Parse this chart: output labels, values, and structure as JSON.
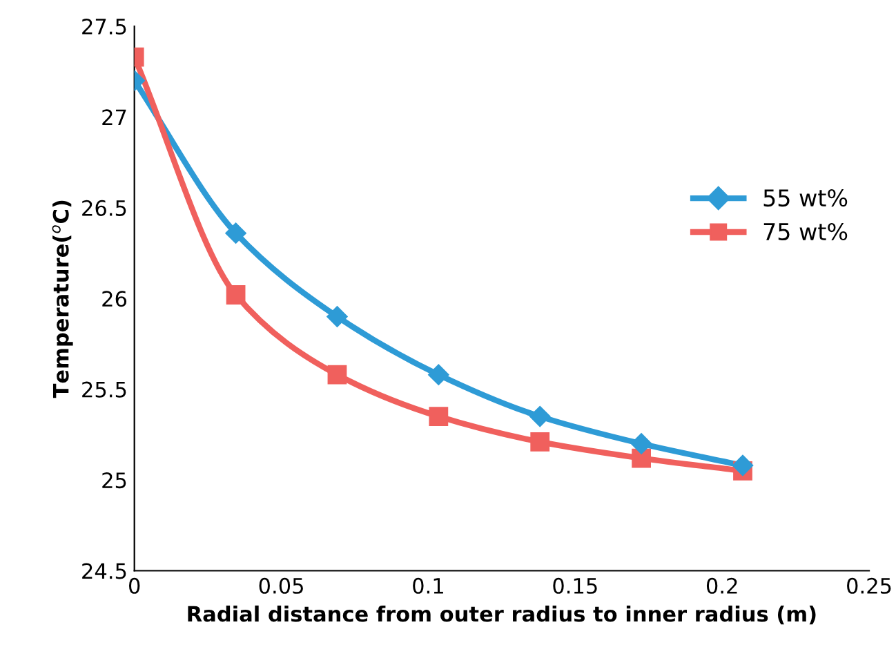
{
  "chart_data": {
    "type": "line",
    "xlabel": "Radial distance from outer radius to inner radius (m)",
    "ylabel": "Temperature($^{o}$C)",
    "xlim": [
      0,
      0.25
    ],
    "xticks": [
      0,
      0.05,
      0.1,
      0.15,
      0.2,
      0.25
    ],
    "ylim": [
      24.5,
      27.5
    ],
    "yticks": [
      24.5,
      25,
      25.5,
      26,
      26.5,
      27,
      27.5
    ],
    "x": [
      0,
      0.0345,
      0.069,
      0.1035,
      0.138,
      0.1725,
      0.207
    ],
    "series": [
      {
        "name": "55 wt%",
        "color": "#2e9bd6",
        "marker": "diamond",
        "values": [
          27.2,
          26.36,
          25.9,
          25.58,
          25.35,
          25.2,
          25.08
        ]
      },
      {
        "name": "75 wt%",
        "color": "#f0605d",
        "marker": "square",
        "values": [
          27.33,
          26.02,
          25.58,
          25.35,
          25.21,
          25.12,
          25.05
        ]
      }
    ],
    "grid": false,
    "legend": "right",
    "line_style": "solid"
  }
}
